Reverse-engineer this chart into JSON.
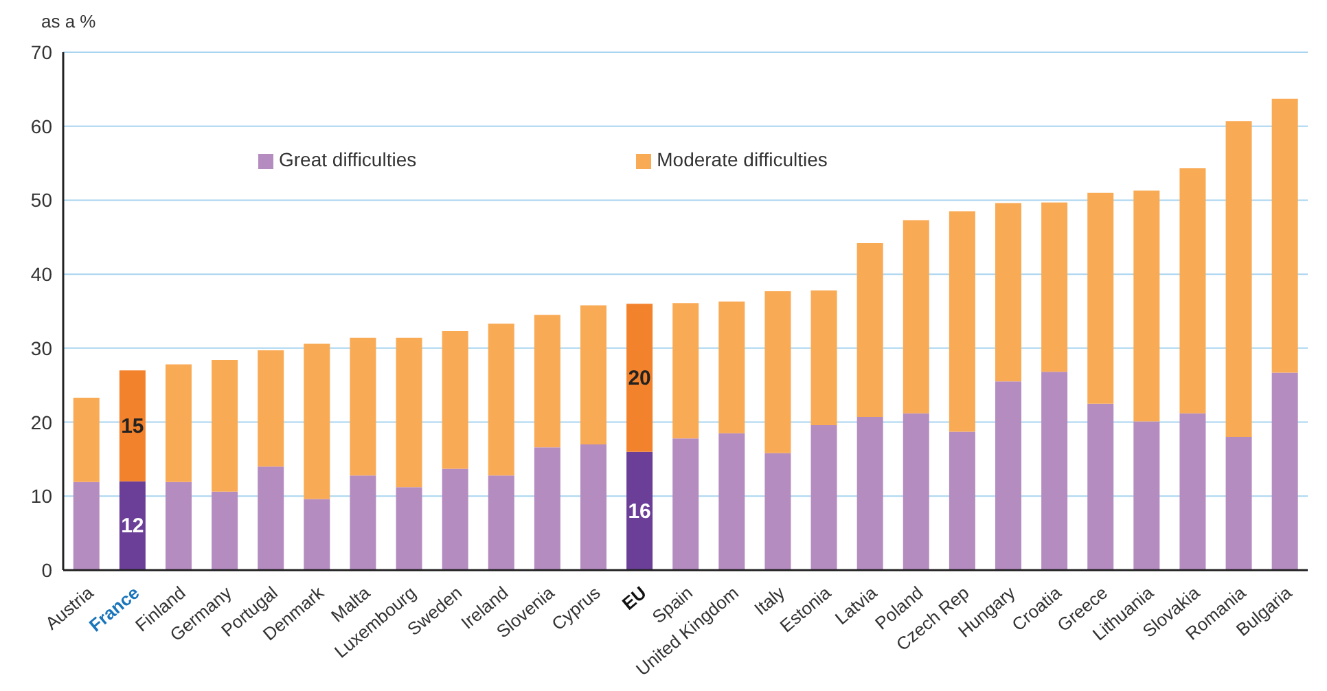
{
  "chart_data": {
    "type": "bar",
    "stacked": true,
    "ylabel": "as a %",
    "ylim": [
      0,
      70
    ],
    "yticks": [
      0,
      10,
      20,
      30,
      40,
      50,
      60,
      70
    ],
    "grid": "y",
    "legend": "top left",
    "categories": [
      "Austria",
      "France",
      "Finland",
      "Germany",
      "Portugal",
      "Denmark",
      "Malta",
      "Luxembourg",
      "Sweden",
      "Ireland",
      "Slovenia",
      "Cyprus",
      "EU",
      "Spain",
      "United Kingdom",
      "Italy",
      "Estonia",
      "Latvia",
      "Poland",
      "Czech Rep",
      "Hungary",
      "Croatia",
      "Greece",
      "Lithuania",
      "Slovakia",
      "Romania",
      "Bulgaria"
    ],
    "series": [
      {
        "name": "Great difficulties",
        "color": "#b48cc0",
        "colors": [
          "#b48cc0",
          "#6b3f98",
          "#b48cc0",
          "#b48cc0",
          "#b48cc0",
          "#b48cc0",
          "#b48cc0",
          "#b48cc0",
          "#b48cc0",
          "#b48cc0",
          "#b48cc0",
          "#b48cc0",
          "#6b3f98",
          "#b48cc0",
          "#b48cc0",
          "#b48cc0",
          "#b48cc0",
          "#b48cc0",
          "#b48cc0",
          "#b48cc0",
          "#b48cc0",
          "#b48cc0",
          "#b48cc0",
          "#b48cc0",
          "#b48cc0",
          "#b48cc0",
          "#b48cc0"
        ],
        "values": [
          11.9,
          12,
          11.9,
          10.6,
          14,
          9.6,
          12.8,
          11.2,
          13.7,
          12.8,
          16.6,
          17,
          16,
          17.8,
          18.5,
          15.8,
          19.6,
          20.7,
          21.2,
          18.7,
          25.5,
          26.8,
          22.5,
          20.1,
          21.2,
          18,
          26.7
        ],
        "value_labels": [
          null,
          "12",
          null,
          null,
          null,
          null,
          null,
          null,
          null,
          null,
          null,
          null,
          "16",
          null,
          null,
          null,
          null,
          null,
          null,
          null,
          null,
          null,
          null,
          null,
          null,
          null,
          null
        ]
      },
      {
        "name": "Moderate difficulties",
        "color": "#f9aa55",
        "colors": [
          "#f9aa55",
          "#f3822c",
          "#f9aa55",
          "#f9aa55",
          "#f9aa55",
          "#f9aa55",
          "#f9aa55",
          "#f9aa55",
          "#f9aa55",
          "#f9aa55",
          "#f9aa55",
          "#f9aa55",
          "#f3822c",
          "#f9aa55",
          "#f9aa55",
          "#f9aa55",
          "#f9aa55",
          "#f9aa55",
          "#f9aa55",
          "#f9aa55",
          "#f9aa55",
          "#f9aa55",
          "#f9aa55",
          "#f9aa55",
          "#f9aa55",
          "#f9aa55",
          "#f9aa55"
        ],
        "values": [
          11.4,
          15,
          15.9,
          17.8,
          15.7,
          21,
          18.6,
          20.2,
          18.6,
          20.5,
          17.9,
          18.8,
          20,
          18.3,
          17.8,
          21.9,
          18.2,
          23.5,
          26.1,
          29.8,
          24.1,
          22.9,
          28.5,
          31.2,
          33.1,
          42.7,
          37
        ],
        "value_labels": [
          null,
          "15",
          null,
          null,
          null,
          null,
          null,
          null,
          null,
          null,
          null,
          null,
          "20",
          null,
          null,
          null,
          null,
          null,
          null,
          null,
          null,
          null,
          null,
          null,
          null,
          null,
          null
        ]
      }
    ]
  }
}
